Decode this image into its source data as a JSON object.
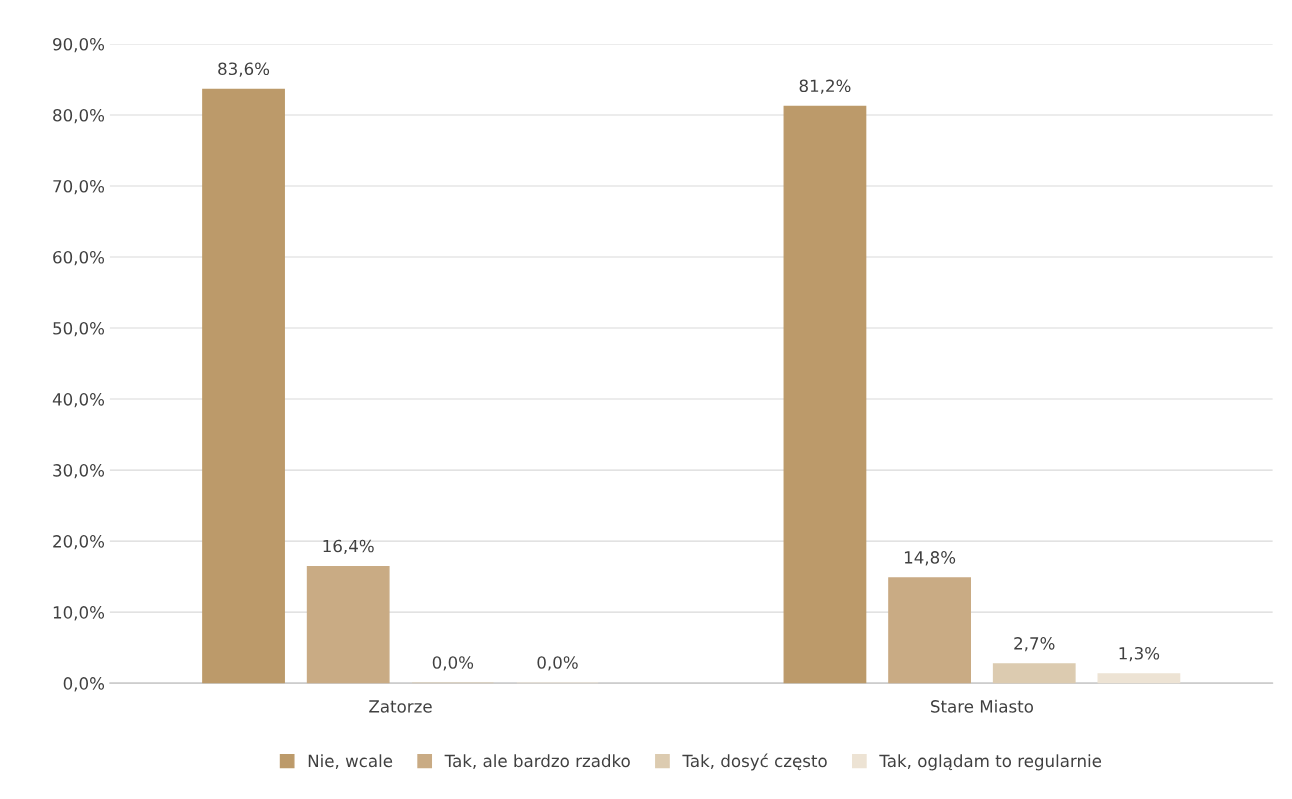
{
  "chart_data": {
    "type": "bar",
    "categories": [
      "Zatorze",
      "Stare Miasto"
    ],
    "series": [
      {
        "name": "Nie, wcale",
        "color": "#bc9a6a",
        "values": [
          83.6,
          81.2
        ],
        "value_labels": [
          "83,6%",
          "81,2%"
        ]
      },
      {
        "name": "Tak, ale bardzo rzadko",
        "color": "#c9ab84",
        "values": [
          16.4,
          14.8
        ],
        "value_labels": [
          "16,4%",
          "14,8%"
        ]
      },
      {
        "name": "Tak, dosyć często",
        "color": "#dccbb0",
        "values": [
          0.0,
          2.7
        ],
        "value_labels": [
          "0,0%",
          "2,7%"
        ]
      },
      {
        "name": "Tak, oglądam to regularnie",
        "color": "#ede3d4",
        "values": [
          0.0,
          1.3
        ],
        "value_labels": [
          "0,0%",
          "1,3%"
        ]
      }
    ],
    "ylim": [
      0,
      90
    ],
    "yticks": [
      {
        "value": 0,
        "label": "0,0%"
      },
      {
        "value": 10,
        "label": "10,0%"
      },
      {
        "value": 20,
        "label": "20,0%"
      },
      {
        "value": 30,
        "label": "30,0%"
      },
      {
        "value": 40,
        "label": "40,0%"
      },
      {
        "value": 50,
        "label": "50,0%"
      },
      {
        "value": 60,
        "label": "60,0%"
      },
      {
        "value": 70,
        "label": "70,0%"
      },
      {
        "value": 80,
        "label": "80,0%"
      },
      {
        "value": 90,
        "label": "90,0%"
      }
    ],
    "grid": "y",
    "legend": "bottom"
  }
}
